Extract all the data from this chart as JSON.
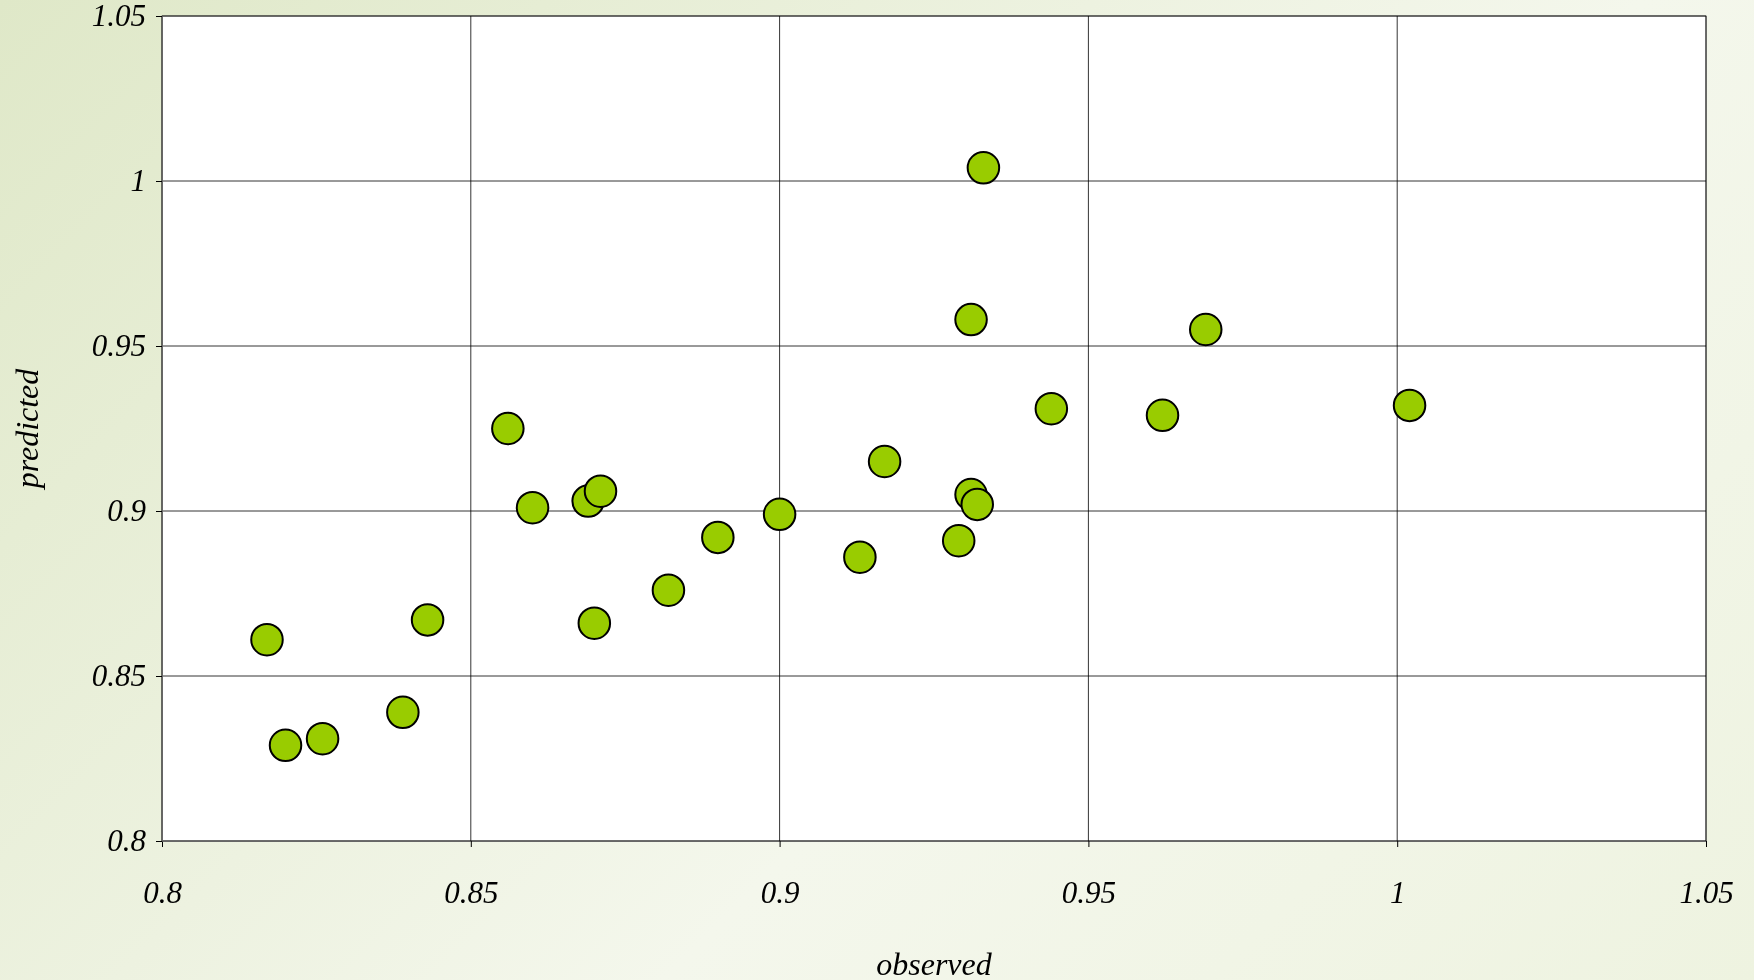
{
  "chart_data": {
    "type": "scatter",
    "xlabel": "observed",
    "ylabel": "predicted",
    "x": [
      0.817,
      0.82,
      0.826,
      0.839,
      0.843,
      0.856,
      0.86,
      0.869,
      0.871,
      0.87,
      0.882,
      0.89,
      0.9,
      0.913,
      0.917,
      0.929,
      0.931,
      0.932,
      0.931,
      0.933,
      0.944,
      0.962,
      0.969,
      1.002
    ],
    "series": [
      {
        "color": "#99cc00",
        "values": [
          0.861,
          0.829,
          0.831,
          0.839,
          0.867,
          0.925,
          0.901,
          0.903,
          0.906,
          0.866,
          0.876,
          0.892,
          0.899,
          0.886,
          0.915,
          0.891,
          0.905,
          0.902,
          0.958,
          1.004,
          0.931,
          0.929,
          0.955,
          0.932
        ]
      }
    ],
    "xlim": [
      0.8,
      1.05
    ],
    "ylim": [
      0.8,
      1.05
    ],
    "xticks": [
      0.8,
      0.85,
      0.9,
      0.95,
      1,
      1.05
    ],
    "yticks": [
      0.8,
      0.85,
      0.9,
      0.95,
      1,
      1.05
    ],
    "grid": true,
    "marker": "circle"
  }
}
